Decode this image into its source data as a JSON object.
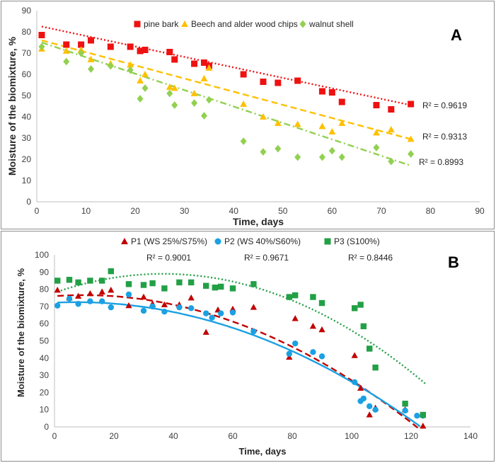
{
  "chart_data": [
    {
      "panel": "A",
      "type": "scatter",
      "panel_label": "A",
      "xlabel": "Time, days",
      "ylabel": "Moisture of the biomixture, %",
      "xlim": [
        0,
        90
      ],
      "ylim": [
        0,
        90
      ],
      "xticks": [
        0,
        10,
        20,
        30,
        40,
        50,
        60,
        70,
        80,
        90
      ],
      "yticks": [
        0,
        10,
        20,
        30,
        40,
        50,
        60,
        70,
        80,
        90
      ],
      "legend_position": "top",
      "series": [
        {
          "name": "pine bark",
          "color": "#ee1111",
          "marker": "square",
          "r2": "R² = 0.9619",
          "trend": {
            "style": "dotted",
            "x": [
              1,
              76
            ],
            "y": [
              82.5,
              45.5
            ]
          },
          "points": [
            [
              1,
              78.5
            ],
            [
              6,
              74
            ],
            [
              9,
              74
            ],
            [
              11,
              76
            ],
            [
              15,
              73
            ],
            [
              19,
              73
            ],
            [
              21,
              71
            ],
            [
              22,
              71.5
            ],
            [
              27,
              70.5
            ],
            [
              28,
              67
            ],
            [
              32,
              65
            ],
            [
              34,
              65.5
            ],
            [
              35,
              64
            ],
            [
              42,
              60
            ],
            [
              46,
              56.5
            ],
            [
              49,
              56
            ],
            [
              53,
              57
            ],
            [
              58,
              52
            ],
            [
              60,
              51.5
            ],
            [
              62,
              47
            ],
            [
              69,
              45.5
            ],
            [
              72,
              43.5
            ],
            [
              76,
              46
            ]
          ]
        },
        {
          "name": "Beech and alder wood chips",
          "color": "#ffc000",
          "marker": "triangle",
          "r2": "R² = 0.9313",
          "trend": {
            "style": "dashed",
            "x": [
              1,
              76
            ],
            "y": [
              76,
              29.5
            ]
          },
          "points": [
            [
              1,
              72
            ],
            [
              6,
              71
            ],
            [
              9,
              71.5
            ],
            [
              11,
              67
            ],
            [
              15,
              65
            ],
            [
              19,
              64.5
            ],
            [
              21,
              57
            ],
            [
              22,
              60
            ],
            [
              27,
              54
            ],
            [
              28,
              53.5
            ],
            [
              32,
              51
            ],
            [
              34,
              58
            ],
            [
              35,
              63
            ],
            [
              42,
              46
            ],
            [
              46,
              40
            ],
            [
              49,
              37
            ],
            [
              53,
              36.5
            ],
            [
              58,
              35.5
            ],
            [
              60,
              33
            ],
            [
              62,
              37
            ],
            [
              69,
              32.5
            ],
            [
              72,
              34
            ],
            [
              76,
              29.5
            ]
          ]
        },
        {
          "name": "walnut shell",
          "color": "#92d050",
          "marker": "diamond",
          "r2": "R² = 0.8993",
          "trend": {
            "style": "dashdot",
            "x": [
              1,
              76
            ],
            "y": [
              75,
              17
            ]
          },
          "points": [
            [
              1,
              73
            ],
            [
              6,
              66
            ],
            [
              9,
              70
            ],
            [
              11,
              62.5
            ],
            [
              15,
              64
            ],
            [
              19,
              62
            ],
            [
              21,
              48.5
            ],
            [
              22,
              53.5
            ],
            [
              27,
              51
            ],
            [
              28,
              45.5
            ],
            [
              32,
              46.5
            ],
            [
              34,
              40.5
            ],
            [
              35,
              48
            ],
            [
              42,
              28.5
            ],
            [
              46,
              23.5
            ],
            [
              49,
              25
            ],
            [
              53,
              21
            ],
            [
              58,
              21
            ],
            [
              60,
              24
            ],
            [
              62,
              21
            ],
            [
              69,
              25.5
            ],
            [
              72,
              19
            ],
            [
              76,
              22.5
            ]
          ]
        }
      ]
    },
    {
      "panel": "B",
      "type": "scatter",
      "panel_label": "B",
      "xlabel": "Time, days",
      "ylabel": "Moisture of the biomixture, %",
      "xlim": [
        0,
        140
      ],
      "ylim": [
        0,
        100
      ],
      "xticks": [
        0,
        20,
        40,
        60,
        80,
        100,
        120,
        140
      ],
      "yticks": [
        0,
        10,
        20,
        30,
        40,
        50,
        60,
        70,
        80,
        90,
        100
      ],
      "legend_position": "top",
      "series": [
        {
          "name": "P1 (WS 25%/S75%)",
          "color": "#c00000",
          "marker": "triangle",
          "r2": "R² = 0.9001",
          "trend": {
            "style": "dashed",
            "poly": [
              76.0,
              0.12,
              -0.0061
            ],
            "x": [
              1,
              123
            ]
          },
          "points": [
            [
              1,
              79.5
            ],
            [
              5,
              75
            ],
            [
              8,
              76
            ],
            [
              12,
              77.5
            ],
            [
              16,
              78.5
            ],
            [
              19,
              79.5
            ],
            [
              25,
              70.5
            ],
            [
              30,
              75.5
            ],
            [
              33,
              71.5
            ],
            [
              37,
              71
            ],
            [
              42,
              71
            ],
            [
              46,
              75
            ],
            [
              51,
              55
            ],
            [
              55,
              68
            ],
            [
              60,
              68.5
            ],
            [
              67,
              69.5
            ],
            [
              79,
              40.5
            ],
            [
              81,
              63
            ],
            [
              87,
              58.5
            ],
            [
              90,
              56.5
            ],
            [
              101,
              41.5
            ],
            [
              103,
              22.5
            ],
            [
              106,
              7
            ],
            [
              108,
              11
            ],
            [
              118,
              10
            ],
            [
              124,
              0.5
            ]
          ]
        },
        {
          "name": "P2 (WS 40%/S60%)",
          "color": "#1ba1e2",
          "marker": "circle",
          "r2": "R² = 0.9671",
          "trend": {
            "style": "solid",
            "poly": [
              72.2,
              0.08,
              -0.0054
            ],
            "x": [
              1,
              123
            ]
          },
          "points": [
            [
              1,
              70.5
            ],
            [
              5,
              74.5
            ],
            [
              8,
              71.5
            ],
            [
              12,
              73
            ],
            [
              16,
              73
            ],
            [
              19,
              69.5
            ],
            [
              25,
              77
            ],
            [
              30,
              67.5
            ],
            [
              33,
              70
            ],
            [
              37,
              67
            ],
            [
              42,
              69.5
            ],
            [
              46,
              69
            ],
            [
              51,
              66
            ],
            [
              53,
              63.5
            ],
            [
              56,
              66
            ],
            [
              60,
              66.5
            ],
            [
              67,
              55.5
            ],
            [
              79,
              42.5
            ],
            [
              81,
              48.5
            ],
            [
              87,
              43.5
            ],
            [
              90,
              41
            ],
            [
              101,
              26
            ],
            [
              103,
              15
            ],
            [
              104,
              16.5
            ],
            [
              106,
              12
            ],
            [
              108,
              10
            ],
            [
              118,
              9.5
            ],
            [
              122,
              6.5
            ],
            [
              124,
              6.5
            ]
          ]
        },
        {
          "name": "P3 (S100%)",
          "color": "#22a046",
          "marker": "square",
          "r2": "R² = 0.8446",
          "trend": {
            "style": "dotted",
            "poly": [
              78.0,
              0.6,
              -0.0082
            ],
            "x": [
              1,
              125
            ]
          },
          "points": [
            [
              1,
              85
            ],
            [
              5,
              85.5
            ],
            [
              8,
              84
            ],
            [
              12,
              85
            ],
            [
              16,
              85
            ],
            [
              19,
              90.5
            ],
            [
              25,
              83
            ],
            [
              30,
              82.5
            ],
            [
              33,
              83.5
            ],
            [
              37,
              80.5
            ],
            [
              42,
              84
            ],
            [
              46,
              84
            ],
            [
              51,
              82
            ],
            [
              54,
              81
            ],
            [
              56,
              81.5
            ],
            [
              60,
              80.5
            ],
            [
              67,
              83
            ],
            [
              79,
              75.5
            ],
            [
              81,
              76.5
            ],
            [
              87,
              75.5
            ],
            [
              90,
              72
            ],
            [
              101,
              69
            ],
            [
              103,
              71
            ],
            [
              104,
              58.5
            ],
            [
              106,
              45.5
            ],
            [
              108,
              34.5
            ],
            [
              118,
              13.5
            ],
            [
              124,
              7
            ]
          ]
        }
      ]
    }
  ]
}
